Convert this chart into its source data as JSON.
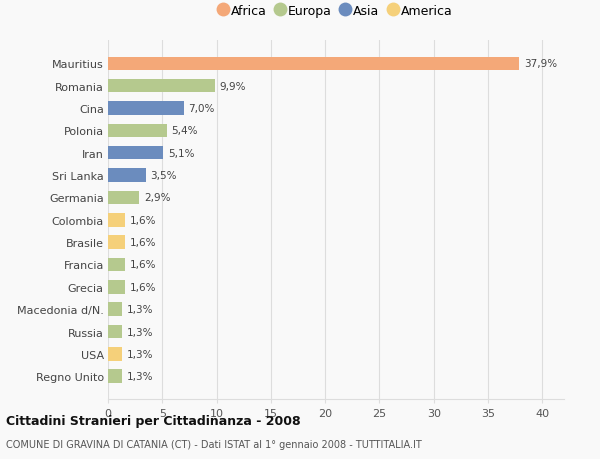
{
  "categories": [
    "Mauritius",
    "Romania",
    "Cina",
    "Polonia",
    "Iran",
    "Sri Lanka",
    "Germania",
    "Colombia",
    "Brasile",
    "Francia",
    "Grecia",
    "Macedonia d/N.",
    "Russia",
    "USA",
    "Regno Unito"
  ],
  "values": [
    37.9,
    9.9,
    7.0,
    5.4,
    5.1,
    3.5,
    2.9,
    1.6,
    1.6,
    1.6,
    1.6,
    1.3,
    1.3,
    1.3,
    1.3
  ],
  "labels": [
    "37,9%",
    "9,9%",
    "7,0%",
    "5,4%",
    "5,1%",
    "3,5%",
    "2,9%",
    "1,6%",
    "1,6%",
    "1,6%",
    "1,6%",
    "1,3%",
    "1,3%",
    "1,3%",
    "1,3%"
  ],
  "continents": [
    "Africa",
    "Europa",
    "Asia",
    "Europa",
    "Asia",
    "Asia",
    "Europa",
    "America",
    "America",
    "Europa",
    "Europa",
    "Europa",
    "Europa",
    "America",
    "Europa"
  ],
  "colors": {
    "Africa": "#F4A878",
    "Europa": "#B5C98E",
    "Asia": "#6B8CBE",
    "America": "#F5D07A"
  },
  "legend_order": [
    "Africa",
    "Europa",
    "Asia",
    "America"
  ],
  "title1": "Cittadini Stranieri per Cittadinanza - 2008",
  "title2": "COMUNE DI GRAVINA DI CATANIA (CT) - Dati ISTAT al 1° gennaio 2008 - TUTTITALIA.IT",
  "xlim": [
    0,
    42
  ],
  "xticks": [
    0,
    5,
    10,
    15,
    20,
    25,
    30,
    35,
    40
  ],
  "background_color": "#f9f9f9",
  "grid_color": "#dddddd"
}
